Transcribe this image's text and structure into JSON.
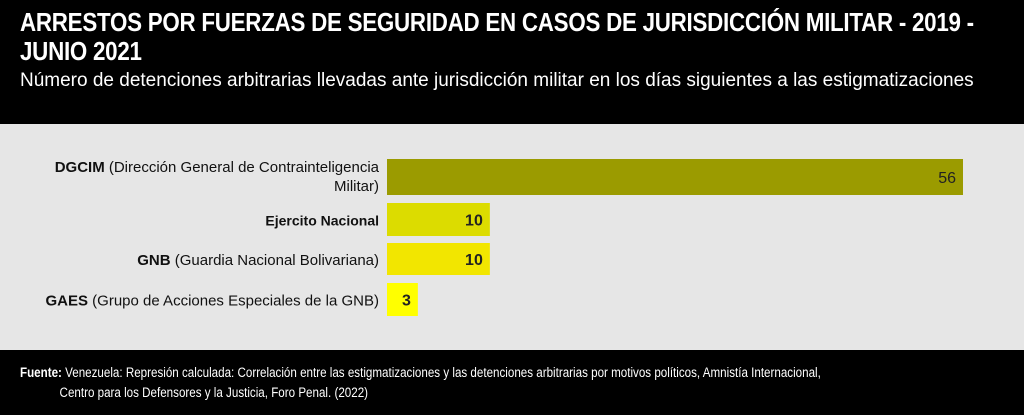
{
  "header": {
    "title": "ARRESTOS POR FUERZAS DE SEGURIDAD EN CASOS DE JURISDICCIÓN MILITAR - 2019 - JUNIO 2021",
    "subtitle": "Número de detenciones arbitrarias llevadas ante jurisdicción militar en los días siguientes a las estigmatizaciones"
  },
  "chart_data": {
    "type": "bar",
    "orientation": "horizontal",
    "title": "ARRESTOS POR FUERZAS DE SEGURIDAD EN CASOS DE JURISDICCIÓN MILITAR - 2019 - JUNIO 2021",
    "subtitle": "Número de detenciones arbitrarias llevadas ante jurisdicción militar en los días siguientes a las estigmatizaciones",
    "categories": [
      {
        "bold": "DGCIM",
        "rest": " (Dirección General de Contrainteligencia",
        "line2": "Militar)"
      },
      {
        "bold": "Ejercito Nacional",
        "rest": "",
        "line2": ""
      },
      {
        "bold": "GNB",
        "rest": " (Guardia Nacional Bolivariana)",
        "line2": ""
      },
      {
        "bold": "GAES",
        "rest": " (Grupo de Acciones Especiales de la GNB)",
        "line2": ""
      }
    ],
    "values": [
      56,
      10,
      10,
      3
    ],
    "value_labels": [
      "56",
      "10",
      "10",
      "3"
    ],
    "colors": [
      "#9b9b00",
      "#dcdc00",
      "#f2e600",
      "#ffff00"
    ],
    "xlim": [
      0,
      56
    ],
    "grid": false,
    "legend": "none",
    "xlabel": "",
    "ylabel": ""
  },
  "footer": {
    "source_label": "Fuente:",
    "source_line1": " Venezuela: Represión calculada: Correlación  entre las estigmatizaciones y las detenciones arbitrarias por motivos políticos, Amnistía Internacional,",
    "source_line2": "Centro para los Defensores y la Justicia, Foro Penal. (2022)"
  }
}
